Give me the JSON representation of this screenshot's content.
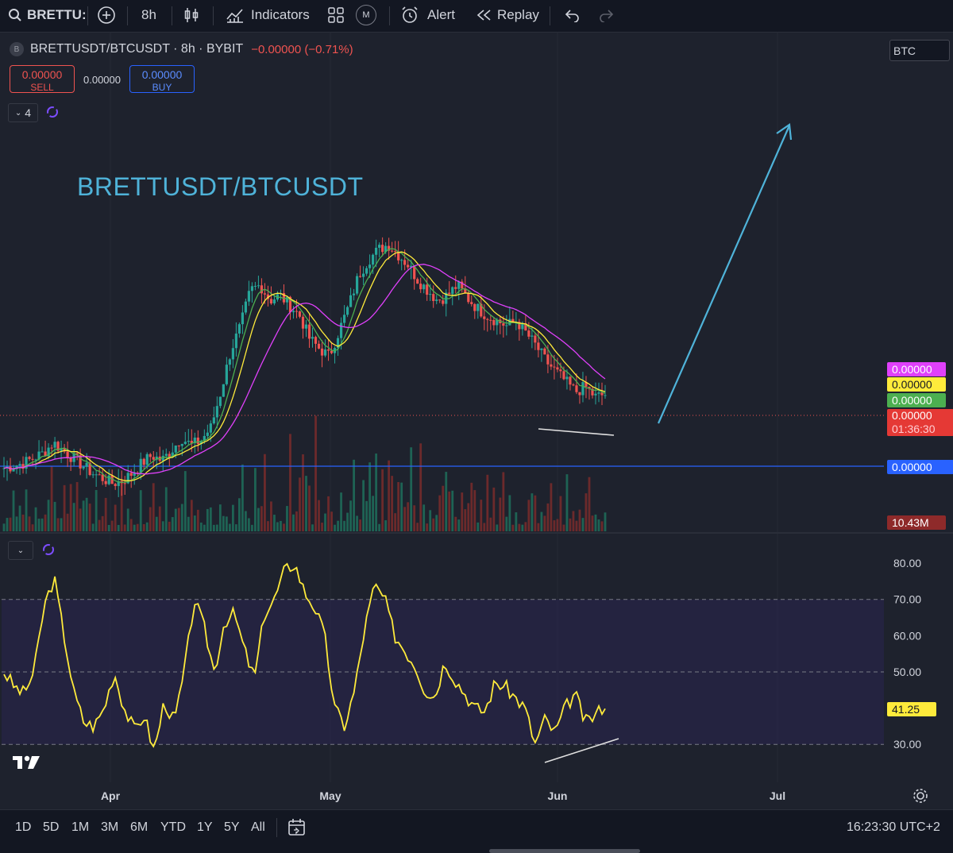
{
  "toolbar": {
    "symbol": "BRETTU:",
    "interval": "8h",
    "indicators_label": "Indicators",
    "m_badge": "M",
    "alert_label": "Alert",
    "replay_label": "Replay"
  },
  "legend": {
    "symbol_line": "BRETTUSDT/BTCUSDT · 8h · BYBIT",
    "change": "−0.00000 (−0.71%)",
    "sell_price": "0.00000",
    "sell_label": "SELL",
    "spread": "0.00000",
    "buy_price": "0.00000",
    "buy_label": "BUY",
    "indicator_count": "4",
    "currency": "BTC"
  },
  "annotation_title": "BRETTUSDT/BTCUSDT",
  "price_badges": {
    "ma_slow": "0.00000",
    "ma_mid": "0.00000",
    "ma_fast": "0.00000",
    "last": "0.00000",
    "countdown": "01:36:30",
    "level": "0.00000",
    "volume": "10.43M"
  },
  "rsi_badge": "41.25",
  "rsi_axis_labels": [
    "80.00",
    "70.00",
    "60.00",
    "50.00",
    "30.00"
  ],
  "time_labels": [
    "Apr",
    "May",
    "Jun",
    "Jul"
  ],
  "periods": [
    "1D",
    "5D",
    "1M",
    "3M",
    "6M",
    "YTD",
    "1Y",
    "5Y",
    "All"
  ],
  "clock": "16:23:30 UTC+2",
  "colors": {
    "up": "#26a69a",
    "down": "#ef5350",
    "ma_fast": "#4caf50",
    "ma_mid": "#ffeb3b",
    "ma_slow": "#e040fb",
    "rsi": "#ffeb3b",
    "level_line": "#2962ff",
    "arrow": "#4fb3d9"
  },
  "chart_data": [
    {
      "type": "candlestick",
      "title": "BRETTUSDT/BTCUSDT",
      "interval": "8h",
      "overlays": [
        "fast MA",
        "mid MA",
        "slow MA",
        "horizontal level",
        "volume"
      ],
      "relative_close": [
        0.08,
        0.09,
        0.1,
        0.12,
        0.14,
        0.18,
        0.15,
        0.12,
        0.09,
        0.06,
        0.04,
        0.02,
        0.03,
        0.06,
        0.1,
        0.13,
        0.11,
        0.15,
        0.2,
        0.17,
        0.19,
        0.24,
        0.38,
        0.54,
        0.64,
        0.78,
        0.8,
        0.74,
        0.76,
        0.72,
        0.68,
        0.59,
        0.55,
        0.52,
        0.62,
        0.72,
        0.84,
        0.9,
        0.94,
        0.96,
        0.92,
        0.88,
        0.82,
        0.78,
        0.74,
        0.76,
        0.8,
        0.75,
        0.71,
        0.68,
        0.66,
        0.64,
        0.66,
        0.61,
        0.56,
        0.5,
        0.46,
        0.42,
        0.38,
        0.4,
        0.36,
        0.37
      ],
      "trend": "rise from late March to a peak in May, decline into early June with a lower low, projected upward"
    },
    {
      "type": "line",
      "title": "RSI",
      "y_range": [
        25,
        82
      ],
      "band": [
        30,
        70
      ],
      "midline": 50,
      "last_value": 41.25,
      "values": [
        50,
        46,
        44,
        50,
        68,
        76,
        60,
        44,
        36,
        35,
        40,
        50,
        40,
        34,
        38,
        28,
        42,
        36,
        50,
        70,
        62,
        50,
        64,
        66,
        56,
        48,
        66,
        70,
        78,
        80,
        72,
        68,
        60,
        40,
        35,
        45,
        62,
        74,
        70,
        60,
        56,
        52,
        45,
        43,
        53,
        48,
        44,
        40,
        39,
        47,
        46,
        43,
        40,
        30,
        37,
        33,
        40,
        44,
        36,
        38,
        41.25
      ],
      "annotation": "rising trendline under RSI lows"
    }
  ]
}
